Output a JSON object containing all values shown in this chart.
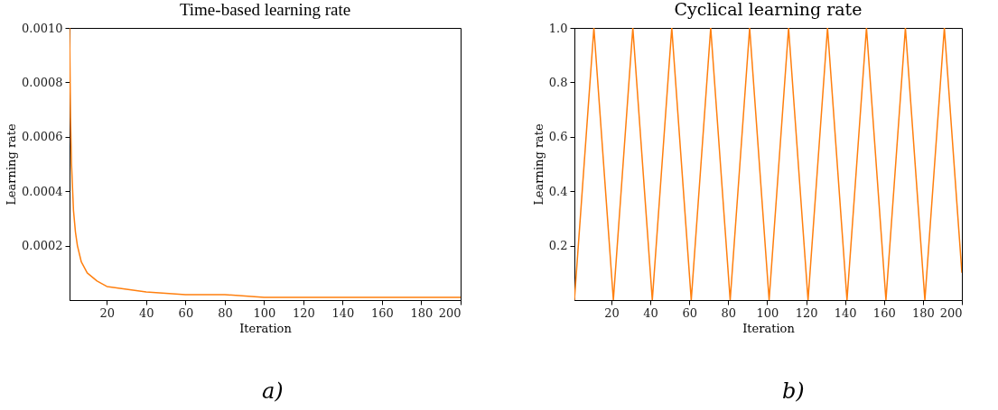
{
  "chart_data": [
    {
      "type": "line",
      "title": "Time-based learning rate",
      "xlabel": "Iteration",
      "ylabel": "Learning rate",
      "annotations": [
        "a)"
      ],
      "x": [
        1,
        1.5,
        2,
        3,
        4,
        5,
        7,
        10,
        15,
        20,
        30,
        40,
        60,
        80,
        100,
        140,
        200
      ],
      "series": [
        {
          "color": "#ff7f0e",
          "values": [
            0.001,
            0.00067,
            0.0005,
            0.00033,
            0.00025,
            0.0002,
            0.00014,
            0.0001,
            7e-05,
            5e-05,
            4e-05,
            3e-05,
            2e-05,
            2e-05,
            1e-05,
            1e-05,
            1e-05
          ]
        }
      ],
      "xlim": [
        1,
        200
      ],
      "ylim": [
        0,
        0.001
      ],
      "xticks": [
        20,
        40,
        60,
        80,
        100,
        120,
        140,
        160,
        180,
        200
      ],
      "yticks": [
        0.0002,
        0.0004,
        0.0006,
        0.0008,
        {
          "value": 0.001,
          "label": "0.0010"
        }
      ],
      "grid": false
    },
    {
      "type": "line",
      "title": "Cyclical  learning  rate",
      "xlabel": "Iteration",
      "ylabel": "Learning rate",
      "annotations": [
        "b)"
      ],
      "x": [
        1,
        11,
        21,
        31,
        41,
        51,
        61,
        71,
        81,
        91,
        101,
        111,
        121,
        131,
        141,
        151,
        161,
        171,
        181,
        191,
        200
      ],
      "series": [
        {
          "color": "#ff7f0e",
          "values": [
            0,
            1,
            0,
            1,
            0,
            1,
            0,
            1,
            0,
            1,
            0,
            1,
            0,
            1,
            0,
            1,
            0,
            1,
            0,
            1,
            0.1
          ]
        }
      ],
      "xlim": [
        1,
        200
      ],
      "ylim": [
        0,
        1
      ],
      "xticks": [
        20,
        40,
        60,
        80,
        100,
        120,
        140,
        160,
        180,
        200
      ],
      "yticks": [
        0.2,
        0.4,
        0.6,
        0.8,
        {
          "value": 1,
          "label": "1.0"
        }
      ],
      "grid": false
    }
  ]
}
